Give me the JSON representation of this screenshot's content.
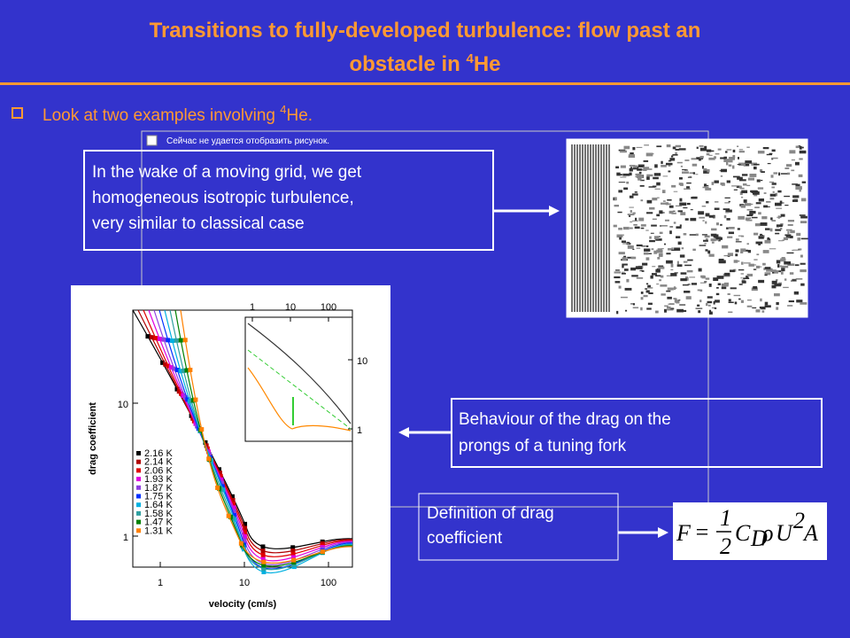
{
  "slide": {
    "title_line1": "Transitions to fully-developed turbulence: flow past an",
    "title_line2_pre": "obstacle in ",
    "title_sup": "4",
    "title_line2_post": "He",
    "bullet_pre": "Look at two examples involving ",
    "bullet_sup": "4",
    "bullet_post": "He.",
    "placeholder": "Сейчас не удается отобразить рисунок.",
    "box1": [
      "In the wake of a moving grid,   we get",
      "homogeneous isotropic turbulence,",
      "very similar to classical case"
    ],
    "box2": [
      "Behaviour of the drag on the",
      "prongs of a tuning fork"
    ],
    "box3": [
      "Definition of drag",
      "coefficient"
    ],
    "equation": {
      "F": "F",
      "eq": "=",
      "num": "1",
      "den": "2",
      "C": "C",
      "sub": "D",
      "rho": "ρ",
      "U": "U",
      "pow": "2",
      "A": "A"
    }
  },
  "figure": {
    "xlabel": "velocity (cm/s)",
    "ylabel": "drag coefficient",
    "xticks": [
      1,
      10,
      100
    ],
    "yticks": [
      1,
      10
    ],
    "inset_xticks": [
      1,
      10,
      100
    ],
    "inset_yticks": [
      10,
      1
    ],
    "legend": [
      {
        "name": "2.16 K",
        "color": "#000000"
      },
      {
        "name": "2.14 K",
        "color": "#b00000"
      },
      {
        "name": "2.06 K",
        "color": "#e00000"
      },
      {
        "name": "1.93 K",
        "color": "#e000e0"
      },
      {
        "name": "1.87 K",
        "color": "#9040e0"
      },
      {
        "name": "1.75 K",
        "color": "#0030ff"
      },
      {
        "name": "1.64 K",
        "color": "#00b0e0"
      },
      {
        "name": "1.58 K",
        "color": "#30a0a0"
      },
      {
        "name": "1.47 K",
        "color": "#008000"
      },
      {
        "name": "1.31 K",
        "color": "#ff8000"
      }
    ]
  }
}
